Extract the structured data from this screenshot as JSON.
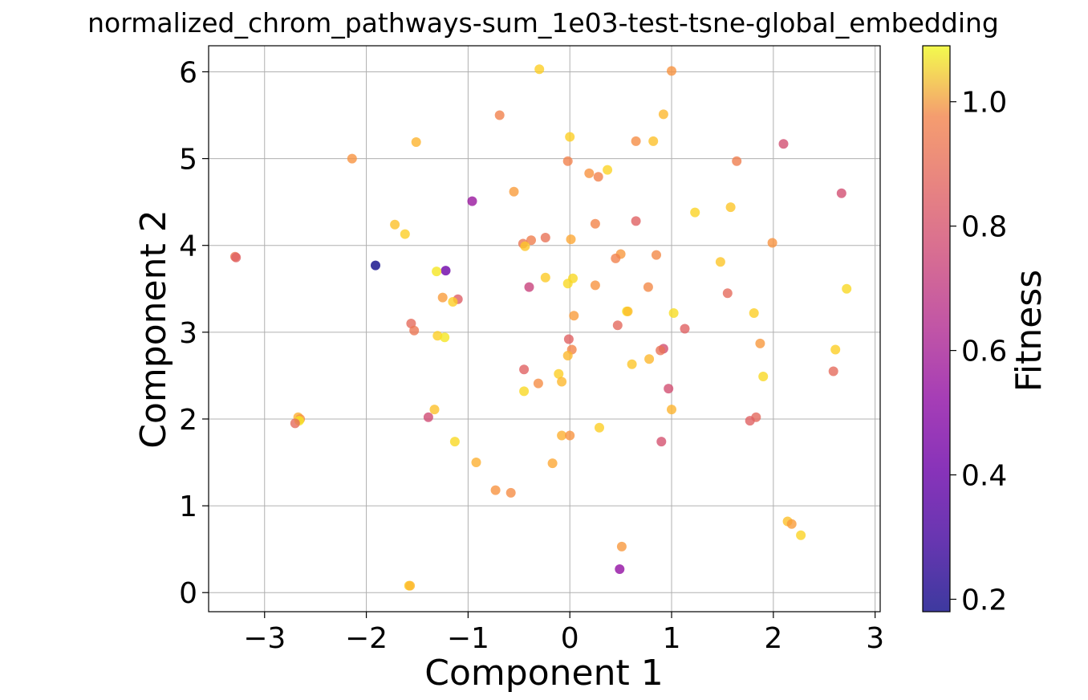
{
  "chart_data": {
    "type": "scatter",
    "title": "normalized_chrom_pathways-sum_1e03-test-tsne-global_embedding",
    "xlabel": "Component 1",
    "ylabel": "Component 2",
    "xlim": [
      -3.55,
      3.05
    ],
    "ylim": [
      -0.22,
      6.3
    ],
    "xticks": [
      -3,
      -2,
      -1,
      0,
      1,
      2,
      3
    ],
    "xtick_labels": [
      "−3",
      "−2",
      "−1",
      "0",
      "1",
      "2",
      "3"
    ],
    "yticks": [
      0,
      1,
      2,
      3,
      4,
      5,
      6
    ],
    "ytick_labels": [
      "0",
      "1",
      "2",
      "3",
      "4",
      "5",
      "6"
    ],
    "grid": true,
    "colormap": "plasma",
    "colorbar": {
      "label": "Fitness",
      "range": [
        0.18,
        1.09
      ],
      "ticks": [
        0.2,
        0.4,
        0.6,
        0.8,
        1.0
      ],
      "tick_labels": [
        "0.2",
        "0.4",
        "0.6",
        "0.8",
        "1.0"
      ]
    },
    "points": [
      {
        "x": -0.3,
        "y": 6.03,
        "v": 1.0
      },
      {
        "x": 1.0,
        "y": 6.01,
        "v": 0.86
      },
      {
        "x": -0.69,
        "y": 5.5,
        "v": 0.81
      },
      {
        "x": 0.92,
        "y": 5.51,
        "v": 0.95
      },
      {
        "x": 0.0,
        "y": 5.25,
        "v": 1.0
      },
      {
        "x": -1.51,
        "y": 5.19,
        "v": 0.94
      },
      {
        "x": 0.65,
        "y": 5.2,
        "v": 0.84
      },
      {
        "x": 0.82,
        "y": 5.2,
        "v": 0.97
      },
      {
        "x": 2.1,
        "y": 5.17,
        "v": 0.66
      },
      {
        "x": -2.14,
        "y": 5.0,
        "v": 0.86
      },
      {
        "x": -0.02,
        "y": 4.97,
        "v": 0.81
      },
      {
        "x": 1.64,
        "y": 4.97,
        "v": 0.8
      },
      {
        "x": 0.37,
        "y": 4.87,
        "v": 1.01
      },
      {
        "x": 0.19,
        "y": 4.83,
        "v": 0.86
      },
      {
        "x": 0.28,
        "y": 4.79,
        "v": 0.81
      },
      {
        "x": -0.55,
        "y": 4.62,
        "v": 0.88
      },
      {
        "x": 2.67,
        "y": 4.6,
        "v": 0.66
      },
      {
        "x": -0.96,
        "y": 4.51,
        "v": 0.48
      },
      {
        "x": 1.58,
        "y": 4.44,
        "v": 0.98
      },
      {
        "x": 1.23,
        "y": 4.38,
        "v": 1.01
      },
      {
        "x": 0.65,
        "y": 4.28,
        "v": 0.72
      },
      {
        "x": 0.25,
        "y": 4.25,
        "v": 0.82
      },
      {
        "x": -1.72,
        "y": 4.24,
        "v": 0.97
      },
      {
        "x": -1.62,
        "y": 4.13,
        "v": 1.0
      },
      {
        "x": -0.24,
        "y": 4.09,
        "v": 0.77
      },
      {
        "x": 0.01,
        "y": 4.07,
        "v": 0.91
      },
      {
        "x": -0.38,
        "y": 4.06,
        "v": 0.8
      },
      {
        "x": -0.46,
        "y": 4.02,
        "v": 0.78
      },
      {
        "x": 1.99,
        "y": 4.03,
        "v": 0.86
      },
      {
        "x": -0.44,
        "y": 3.99,
        "v": 0.98
      },
      {
        "x": 0.5,
        "y": 3.9,
        "v": 0.87
      },
      {
        "x": 0.85,
        "y": 3.89,
        "v": 0.83
      },
      {
        "x": -3.29,
        "y": 3.87,
        "v": 0.78
      },
      {
        "x": -3.28,
        "y": 3.86,
        "v": 0.72
      },
      {
        "x": 0.45,
        "y": 3.85,
        "v": 0.81
      },
      {
        "x": 1.48,
        "y": 3.81,
        "v": 0.98
      },
      {
        "x": -1.91,
        "y": 3.77,
        "v": 0.18
      },
      {
        "x": -1.22,
        "y": 3.71,
        "v": 0.37
      },
      {
        "x": -1.31,
        "y": 3.7,
        "v": 1.05
      },
      {
        "x": -0.24,
        "y": 3.63,
        "v": 0.99
      },
      {
        "x": 0.03,
        "y": 3.62,
        "v": 1.02
      },
      {
        "x": -0.02,
        "y": 3.56,
        "v": 1.02
      },
      {
        "x": 0.25,
        "y": 3.54,
        "v": 0.86
      },
      {
        "x": -0.4,
        "y": 3.52,
        "v": 0.62
      },
      {
        "x": 0.77,
        "y": 3.52,
        "v": 0.83
      },
      {
        "x": 2.72,
        "y": 3.5,
        "v": 1.02
      },
      {
        "x": 1.55,
        "y": 3.45,
        "v": 0.75
      },
      {
        "x": -1.25,
        "y": 3.4,
        "v": 0.88
      },
      {
        "x": -1.1,
        "y": 3.38,
        "v": 0.71
      },
      {
        "x": -1.15,
        "y": 3.35,
        "v": 1.0
      },
      {
        "x": 0.56,
        "y": 3.24,
        "v": 1.04
      },
      {
        "x": 0.57,
        "y": 3.24,
        "v": 0.96
      },
      {
        "x": 1.02,
        "y": 3.22,
        "v": 1.03
      },
      {
        "x": 1.81,
        "y": 3.22,
        "v": 1.0
      },
      {
        "x": 0.04,
        "y": 3.19,
        "v": 0.88
      },
      {
        "x": -1.56,
        "y": 3.1,
        "v": 0.75
      },
      {
        "x": 0.47,
        "y": 3.08,
        "v": 0.74
      },
      {
        "x": 1.13,
        "y": 3.04,
        "v": 0.72
      },
      {
        "x": -1.53,
        "y": 3.02,
        "v": 0.78
      },
      {
        "x": -1.3,
        "y": 2.96,
        "v": 1.0
      },
      {
        "x": -1.23,
        "y": 2.94,
        "v": 1.05
      },
      {
        "x": -0.01,
        "y": 2.92,
        "v": 0.72
      },
      {
        "x": 1.87,
        "y": 2.87,
        "v": 0.87
      },
      {
        "x": 0.92,
        "y": 2.81,
        "v": 0.66
      },
      {
        "x": 0.89,
        "y": 2.79,
        "v": 0.77
      },
      {
        "x": 0.02,
        "y": 2.8,
        "v": 0.82
      },
      {
        "x": 2.61,
        "y": 2.8,
        "v": 1.0
      },
      {
        "x": -0.02,
        "y": 2.73,
        "v": 0.95
      },
      {
        "x": 0.78,
        "y": 2.69,
        "v": 0.95
      },
      {
        "x": 0.61,
        "y": 2.63,
        "v": 0.98
      },
      {
        "x": -0.45,
        "y": 2.57,
        "v": 0.72
      },
      {
        "x": 2.59,
        "y": 2.55,
        "v": 0.75
      },
      {
        "x": -0.11,
        "y": 2.52,
        "v": 1.0
      },
      {
        "x": 1.9,
        "y": 2.49,
        "v": 1.02
      },
      {
        "x": -0.08,
        "y": 2.43,
        "v": 0.95
      },
      {
        "x": -0.31,
        "y": 2.41,
        "v": 0.84
      },
      {
        "x": 0.97,
        "y": 2.35,
        "v": 0.66
      },
      {
        "x": -0.45,
        "y": 2.32,
        "v": 1.02
      },
      {
        "x": 1.0,
        "y": 2.11,
        "v": 0.94
      },
      {
        "x": -1.33,
        "y": 2.11,
        "v": 0.97
      },
      {
        "x": -2.67,
        "y": 2.02,
        "v": 0.93
      },
      {
        "x": -2.65,
        "y": 2.0,
        "v": 0.85
      },
      {
        "x": -2.66,
        "y": 1.98,
        "v": 1.05
      },
      {
        "x": -1.39,
        "y": 2.02,
        "v": 0.65
      },
      {
        "x": 1.83,
        "y": 2.02,
        "v": 0.74
      },
      {
        "x": 1.77,
        "y": 1.98,
        "v": 0.72
      },
      {
        "x": -2.7,
        "y": 1.95,
        "v": 0.75
      },
      {
        "x": 0.29,
        "y": 1.9,
        "v": 1.0
      },
      {
        "x": -0.08,
        "y": 1.81,
        "v": 0.93
      },
      {
        "x": 0.0,
        "y": 1.81,
        "v": 0.86
      },
      {
        "x": -1.13,
        "y": 1.74,
        "v": 1.02
      },
      {
        "x": 0.9,
        "y": 1.74,
        "v": 0.67
      },
      {
        "x": -0.92,
        "y": 1.5,
        "v": 0.93
      },
      {
        "x": -0.17,
        "y": 1.49,
        "v": 0.91
      },
      {
        "x": -0.73,
        "y": 1.18,
        "v": 0.86
      },
      {
        "x": -0.58,
        "y": 1.15,
        "v": 0.84
      },
      {
        "x": 2.14,
        "y": 0.82,
        "v": 0.97
      },
      {
        "x": 2.18,
        "y": 0.79,
        "v": 0.88
      },
      {
        "x": 2.27,
        "y": 0.66,
        "v": 1.01
      },
      {
        "x": 0.51,
        "y": 0.53,
        "v": 0.87
      },
      {
        "x": 0.49,
        "y": 0.27,
        "v": 0.46
      },
      {
        "x": -1.58,
        "y": 0.08,
        "v": 1.0
      },
      {
        "x": -1.57,
        "y": 0.08,
        "v": 0.95
      }
    ]
  }
}
